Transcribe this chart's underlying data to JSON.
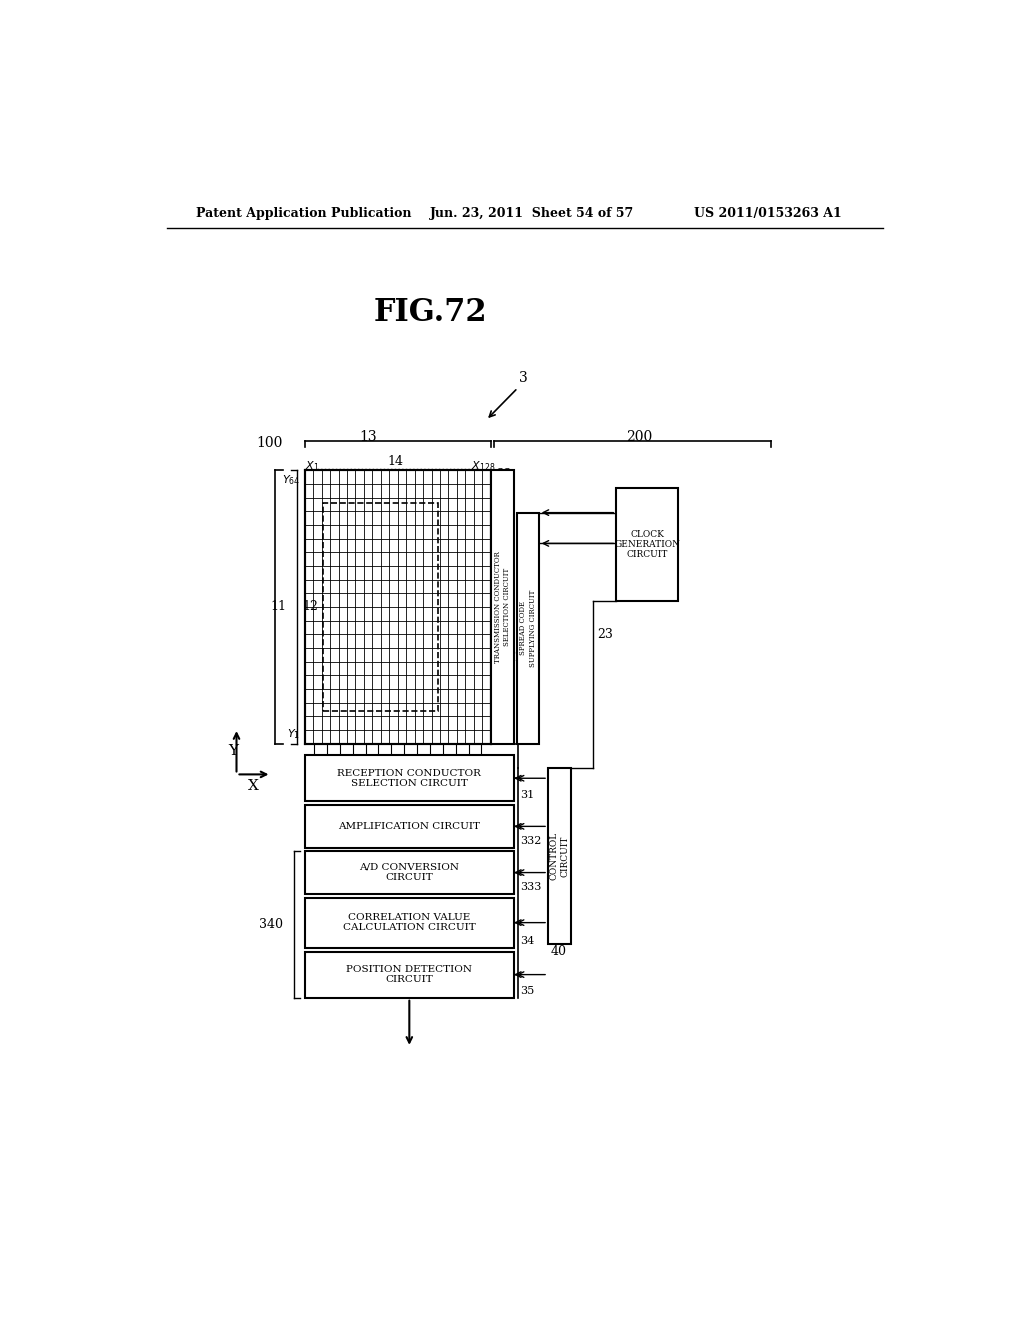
{
  "title": "FIG.72",
  "header_left": "Patent Application Publication",
  "header_center": "Jun. 23, 2011  Sheet 54 of 57",
  "header_right": "US 2011/0153263 A1",
  "bg_color": "#ffffff",
  "text_color": "#000000"
}
